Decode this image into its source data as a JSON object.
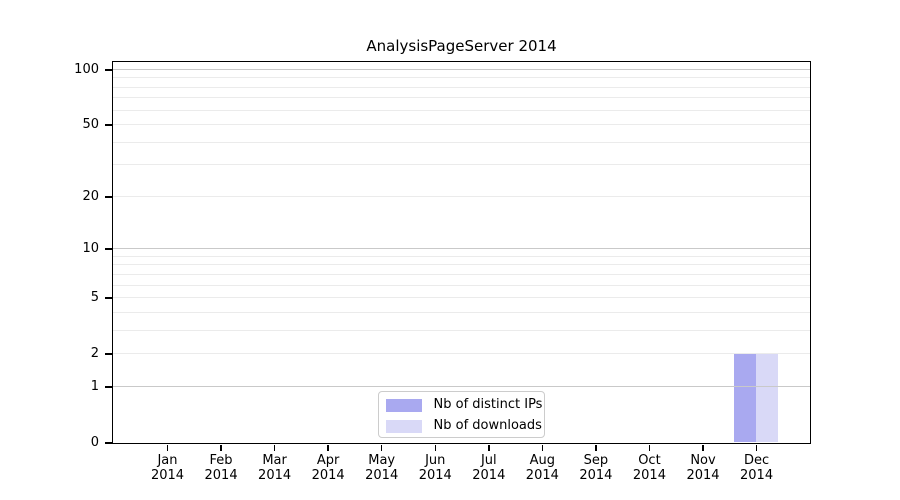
{
  "title": "AnalysisPageServer 2014",
  "colors": {
    "background": "#ffffff",
    "axis": "#000000",
    "text": "#000000",
    "grid_major": "#c9c9c9",
    "grid_minor": "#ebebeb",
    "legend_border": "#cccccc",
    "bar_distinct_ips": "#a9a9f0",
    "bar_downloads": "#d9d9f7"
  },
  "chart_data": {
    "type": "bar",
    "title": "AnalysisPageServer 2014",
    "x": {
      "months": [
        "Jan",
        "Feb",
        "Mar",
        "Apr",
        "May",
        "Jun",
        "Jul",
        "Aug",
        "Sep",
        "Oct",
        "Nov",
        "Dec"
      ],
      "year": "2014"
    },
    "series": [
      {
        "name": "Nb of distinct IPs",
        "color": "#a9a9f0",
        "values": [
          0,
          0,
          0,
          0,
          0,
          0,
          0,
          0,
          0,
          0,
          0,
          2
        ]
      },
      {
        "name": "Nb of downloads",
        "color": "#d9d9f7",
        "values": [
          0,
          0,
          0,
          0,
          0,
          0,
          0,
          0,
          0,
          0,
          0,
          2
        ]
      }
    ],
    "y_axis": {
      "scale": "log(1+x)",
      "ylim": [
        0,
        110
      ],
      "tick_values": [
        0,
        1,
        2,
        5,
        10,
        20,
        50,
        100
      ],
      "tick_labels": [
        "0",
        "1",
        "2",
        "5",
        "10",
        "20",
        "50",
        "100"
      ],
      "major_gridlines": [
        1,
        10,
        100
      ],
      "minor_gridlines": [
        2,
        3,
        4,
        5,
        6,
        7,
        8,
        9,
        20,
        30,
        40,
        50,
        60,
        70,
        80,
        90
      ]
    },
    "grid": "horizontal-only",
    "legend_position": "bottom-center"
  }
}
